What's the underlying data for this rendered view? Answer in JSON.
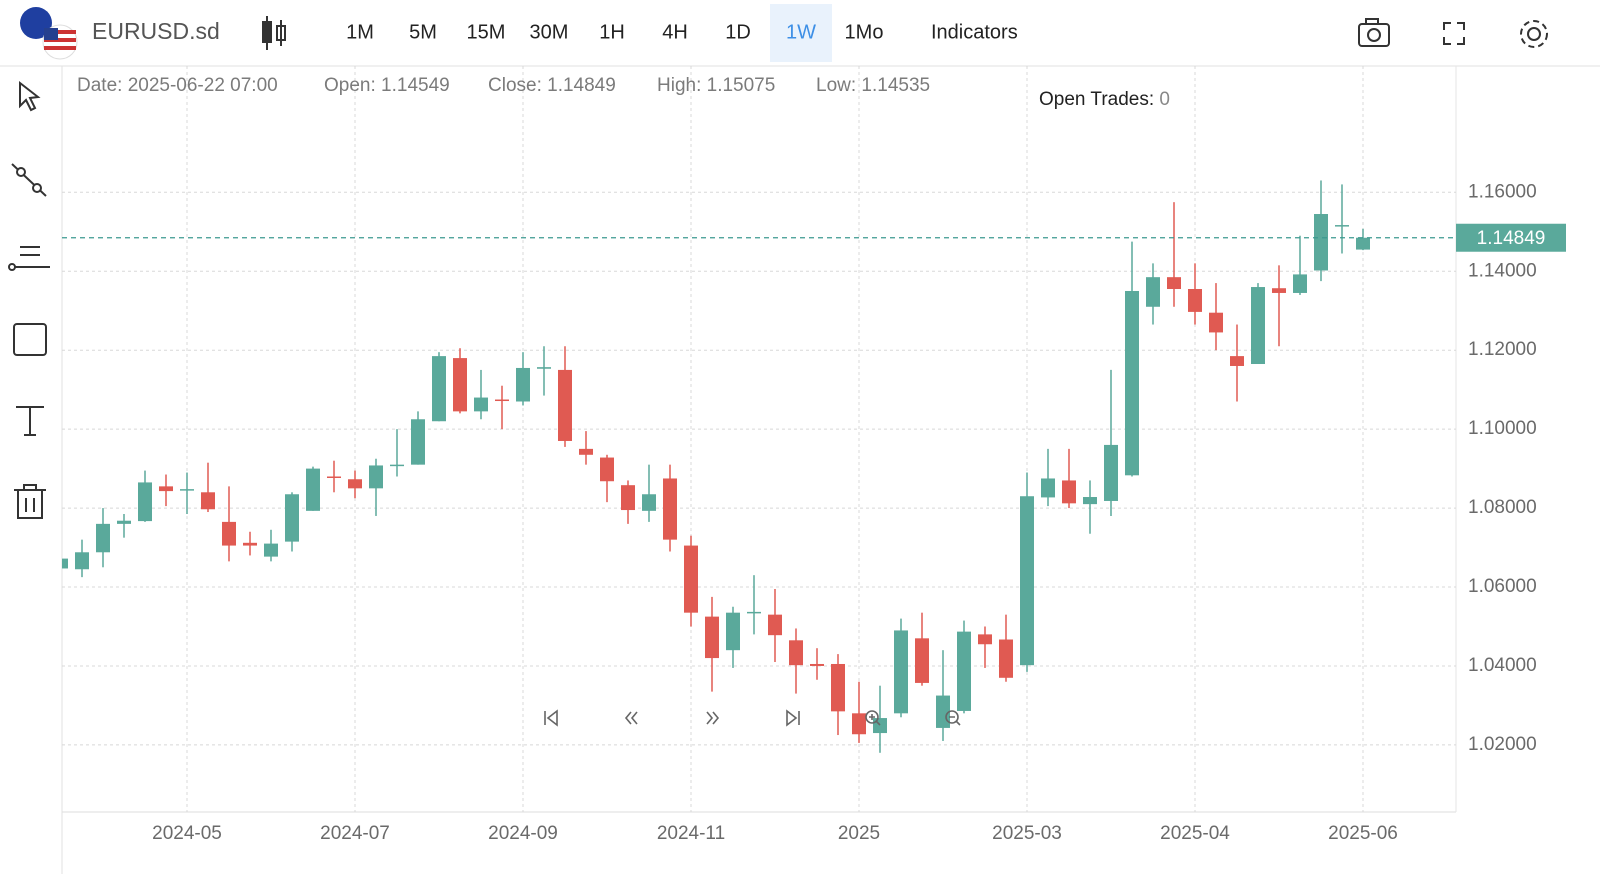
{
  "toolbar": {
    "symbol": "EURUSD.sd",
    "timeframes": [
      "1M",
      "5M",
      "15M",
      "30M",
      "1H",
      "4H",
      "1D",
      "1W",
      "1Mo"
    ],
    "active_timeframe": 7,
    "indicators": "Indicators"
  },
  "info": {
    "date_label": "Date:",
    "date": "2025-06-22 07:00",
    "open_label": "Open:",
    "close_label": "Close:",
    "high_label": "High:",
    "low_label": "Low:"
  },
  "open_trades": {
    "label": "Open Trades:",
    "value": 0
  },
  "chart_data": {
    "type": "candlestick",
    "categories": [
      null,
      null,
      null,
      null,
      null,
      null,
      "2024-05",
      null,
      null,
      null,
      null,
      null,
      null,
      null,
      "2024-07",
      null,
      null,
      null,
      null,
      null,
      null,
      null,
      "2024-09",
      null,
      null,
      null,
      null,
      null,
      null,
      null,
      "2024-11",
      null,
      null,
      null,
      null,
      null,
      null,
      null,
      "2025",
      null,
      null,
      null,
      null,
      null,
      null,
      null,
      "2025-03",
      null,
      null,
      null,
      null,
      null,
      null,
      null,
      "2025-04",
      null,
      null,
      null,
      null,
      null,
      null,
      null,
      "2025-06"
    ],
    "open": [
      1.0647,
      1.0645,
      1.0688,
      1.076,
      1.0767,
      1.0855,
      1.0846,
      1.084,
      1.0765,
      1.0712,
      1.0677,
      1.0715,
      1.0793,
      1.088,
      1.0873,
      1.085,
      1.0908,
      1.091,
      1.102,
      1.118,
      1.1045,
      1.1075,
      1.107,
      1.1153,
      1.115,
      1.095,
      1.0928,
      1.0858,
      1.0793,
      1.0875,
      1.0705,
      1.0525,
      1.044,
      1.0535,
      1.053,
      1.0465,
      1.0405,
      1.0405,
      1.028,
      1.023,
      1.028,
      1.047,
      1.0243,
      1.0286,
      1.048,
      1.0467,
      1.0402,
      1.0827,
      1.087,
      1.081,
      1.0818,
      1.0883,
      1.131,
      1.1385,
      1.1355,
      1.1295,
      1.1185,
      1.1165,
      1.1357,
      1.1345,
      1.1402,
      1.1515,
      1.14549
    ],
    "high": [
      1.068,
      1.072,
      1.08,
      1.0785,
      1.0895,
      1.0885,
      1.089,
      1.0915,
      1.0855,
      1.074,
      1.0745,
      1.084,
      1.0905,
      1.092,
      1.0895,
      1.0925,
      1.1,
      1.1045,
      1.1195,
      1.1205,
      1.115,
      1.111,
      1.1195,
      1.121,
      1.121,
      1.0995,
      1.0935,
      1.087,
      1.091,
      1.091,
      1.073,
      1.0575,
      1.055,
      1.063,
      1.0595,
      1.0495,
      1.0445,
      1.043,
      1.036,
      1.035,
      1.052,
      1.0535,
      1.044,
      1.0515,
      1.05,
      1.053,
      1.089,
      1.095,
      1.095,
      1.087,
      1.115,
      1.1475,
      1.142,
      1.1575,
      1.142,
      1.137,
      1.1265,
      1.137,
      1.1415,
      1.149,
      1.163,
      1.162,
      1.15075
    ],
    "low": [
      1.064,
      1.0625,
      1.065,
      1.0725,
      1.0765,
      1.0805,
      1.0785,
      1.079,
      1.0665,
      1.068,
      1.0665,
      1.069,
      1.0793,
      1.084,
      1.0825,
      1.078,
      1.088,
      1.091,
      1.102,
      1.104,
      1.1025,
      1.1,
      1.106,
      1.1085,
      1.0955,
      1.091,
      1.0815,
      1.076,
      1.0765,
      1.069,
      1.05,
      1.0335,
      1.0395,
      1.048,
      1.041,
      1.033,
      1.0365,
      1.0225,
      1.0205,
      1.018,
      1.027,
      1.035,
      1.021,
      1.028,
      1.0395,
      1.036,
      1.0385,
      1.0805,
      1.08,
      1.0735,
      1.078,
      1.088,
      1.1265,
      1.131,
      1.1265,
      1.12,
      1.107,
      1.1165,
      1.121,
      1.134,
      1.1375,
      1.1445,
      1.14535
    ],
    "close": [
      1.0672,
      1.0688,
      1.076,
      1.0768,
      1.0865,
      1.0843,
      1.0848,
      1.0797,
      1.0705,
      1.0705,
      1.071,
      1.0835,
      1.09,
      1.0878,
      1.085,
      1.0908,
      1.091,
      1.1025,
      1.1185,
      1.1045,
      1.108,
      1.1073,
      1.1155,
      1.1157,
      1.097,
      1.0935,
      1.0868,
      1.0795,
      1.0835,
      1.072,
      1.0535,
      1.042,
      1.0535,
      1.0537,
      1.0478,
      1.0402,
      1.04,
      1.0285,
      1.0227,
      1.0268,
      1.049,
      1.0357,
      1.0325,
      1.0487,
      1.0455,
      1.037,
      1.083,
      1.0875,
      1.0812,
      1.0828,
      1.096,
      1.135,
      1.1385,
      1.1355,
      1.1297,
      1.1245,
      1.116,
      1.136,
      1.1345,
      1.1392,
      1.1545,
      1.1517,
      1.14849
    ],
    "up_color": "#5aa99b",
    "down_color": "#e05a52",
    "ylim": [
      1.003,
      1.192
    ],
    "yticks": [
      {
        "value": 1.02,
        "label": "1.02000"
      },
      {
        "value": 1.04,
        "label": "1.04000"
      },
      {
        "value": 1.06,
        "label": "1.06000"
      },
      {
        "value": 1.08,
        "label": "1.08000"
      },
      {
        "value": 1.1,
        "label": "1.10000"
      },
      {
        "value": 1.12,
        "label": "1.12000"
      },
      {
        "value": 1.14,
        "label": "1.14000"
      },
      {
        "value": 1.16,
        "label": "1.16000"
      }
    ],
    "grid": true
  }
}
